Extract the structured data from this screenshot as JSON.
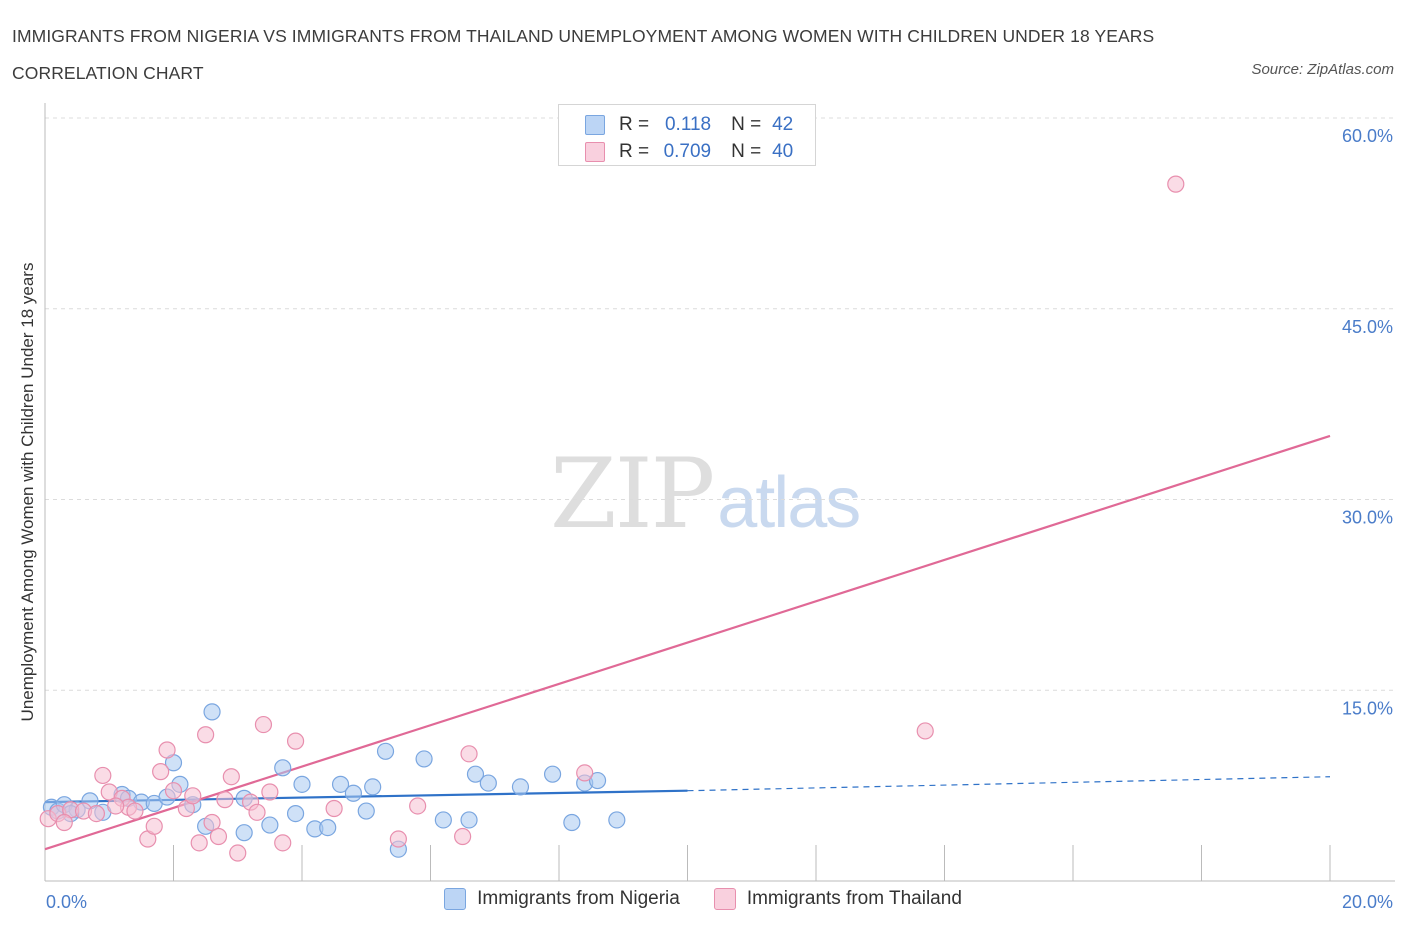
{
  "header": {
    "title": "IMMIGRANTS FROM NIGERIA VS IMMIGRANTS FROM THAILAND UNEMPLOYMENT AMONG WOMEN WITH CHILDREN UNDER 18 YEARS CORRELATION CHART",
    "source": "Source: ZipAtlas.com"
  },
  "watermark": {
    "zip": "ZIP",
    "atlas": "atlas"
  },
  "legend": {
    "rows": [
      {
        "r_label": "R =",
        "r_value": "0.118",
        "n_label": "N =",
        "n_value": "42",
        "color": "#a8c8f0",
        "border": "#7aa6e0"
      },
      {
        "r_label": "R =",
        "r_value": "0.709",
        "n_label": "N =",
        "n_value": "40",
        "color": "#f6c0d2",
        "border": "#e88fae"
      }
    ]
  },
  "chart_data": {
    "type": "scatter",
    "title": "IMMIGRANTS FROM NIGERIA VS IMMIGRANTS FROM THAILAND UNEMPLOYMENT AMONG WOMEN WITH CHILDREN UNDER 18 YEARS CORRELATION CHART",
    "xlabel": "",
    "ylabel": "Unemployment Among Women with Children Under 18 years",
    "xlim": [
      0,
      20
    ],
    "ylim": [
      0,
      60
    ],
    "x_tick_labels": [
      "0.0%",
      "20.0%"
    ],
    "y_tick_labels": [
      "15.0%",
      "30.0%",
      "45.0%",
      "60.0%"
    ],
    "y_ticks": [
      15,
      30,
      45,
      60
    ],
    "grid": true,
    "legend_position": "bottom",
    "series": [
      {
        "name": "Immigrants from Nigeria",
        "color": "#a8c8f0",
        "edge": "#7aa6e0",
        "line_color": "#2f72c8",
        "trend": {
          "x": [
            0,
            10
          ],
          "y": [
            6.2,
            7.1
          ],
          "dashed_to": [
            20,
            8.2
          ]
        },
        "points": [
          [
            0.1,
            5.8
          ],
          [
            0.2,
            5.5
          ],
          [
            0.3,
            6.0
          ],
          [
            0.5,
            5.6
          ],
          [
            0.7,
            6.3
          ],
          [
            0.9,
            5.4
          ],
          [
            1.2,
            6.8
          ],
          [
            1.3,
            6.5
          ],
          [
            1.5,
            6.2
          ],
          [
            1.7,
            6.1
          ],
          [
            2.1,
            7.6
          ],
          [
            2.0,
            9.3
          ],
          [
            2.3,
            6.0
          ],
          [
            2.6,
            13.3
          ],
          [
            2.5,
            4.3
          ],
          [
            3.1,
            6.5
          ],
          [
            3.1,
            3.8
          ],
          [
            3.5,
            4.4
          ],
          [
            3.7,
            8.9
          ],
          [
            3.9,
            5.3
          ],
          [
            4.0,
            7.6
          ],
          [
            4.2,
            4.1
          ],
          [
            4.4,
            4.2
          ],
          [
            4.6,
            7.6
          ],
          [
            4.8,
            6.9
          ],
          [
            5.0,
            5.5
          ],
          [
            5.1,
            7.4
          ],
          [
            5.3,
            10.2
          ],
          [
            5.5,
            2.5
          ],
          [
            5.9,
            9.6
          ],
          [
            6.2,
            4.8
          ],
          [
            6.6,
            4.8
          ],
          [
            6.7,
            8.4
          ],
          [
            6.9,
            7.7
          ],
          [
            7.4,
            7.4
          ],
          [
            7.9,
            8.4
          ],
          [
            8.2,
            4.6
          ],
          [
            8.4,
            7.7
          ],
          [
            8.6,
            7.9
          ],
          [
            8.9,
            4.8
          ],
          [
            1.9,
            6.6
          ],
          [
            0.4,
            5.3
          ]
        ]
      },
      {
        "name": "Immigrants from Thailand",
        "color": "#f6c0d2",
        "edge": "#e88fae",
        "line_color": "#e06996",
        "trend": {
          "x": [
            0,
            20
          ],
          "y": [
            2.5,
            35.0
          ]
        },
        "points": [
          [
            0.05,
            4.9
          ],
          [
            0.2,
            5.3
          ],
          [
            0.4,
            5.6
          ],
          [
            0.6,
            5.5
          ],
          [
            0.8,
            5.3
          ],
          [
            0.9,
            8.3
          ],
          [
            1.0,
            7.0
          ],
          [
            1.2,
            6.5
          ],
          [
            1.3,
            5.8
          ],
          [
            1.4,
            5.5
          ],
          [
            1.6,
            3.3
          ],
          [
            1.7,
            4.3
          ],
          [
            1.8,
            8.6
          ],
          [
            1.9,
            10.3
          ],
          [
            2.0,
            7.1
          ],
          [
            2.2,
            5.7
          ],
          [
            2.3,
            6.7
          ],
          [
            2.4,
            3.0
          ],
          [
            2.5,
            11.5
          ],
          [
            2.6,
            4.6
          ],
          [
            2.7,
            3.5
          ],
          [
            2.9,
            8.2
          ],
          [
            3.0,
            2.2
          ],
          [
            3.2,
            6.2
          ],
          [
            3.3,
            5.4
          ],
          [
            3.4,
            12.3
          ],
          [
            3.5,
            7.0
          ],
          [
            3.7,
            3.0
          ],
          [
            3.9,
            11.0
          ],
          [
            4.5,
            5.7
          ],
          [
            5.5,
            3.3
          ],
          [
            5.8,
            5.9
          ],
          [
            6.5,
            3.5
          ],
          [
            6.6,
            10.0
          ],
          [
            8.4,
            8.5
          ],
          [
            13.7,
            11.8
          ],
          [
            17.6,
            54.8
          ],
          [
            1.1,
            5.9
          ],
          [
            2.8,
            6.4
          ],
          [
            0.3,
            4.6
          ]
        ]
      }
    ]
  }
}
